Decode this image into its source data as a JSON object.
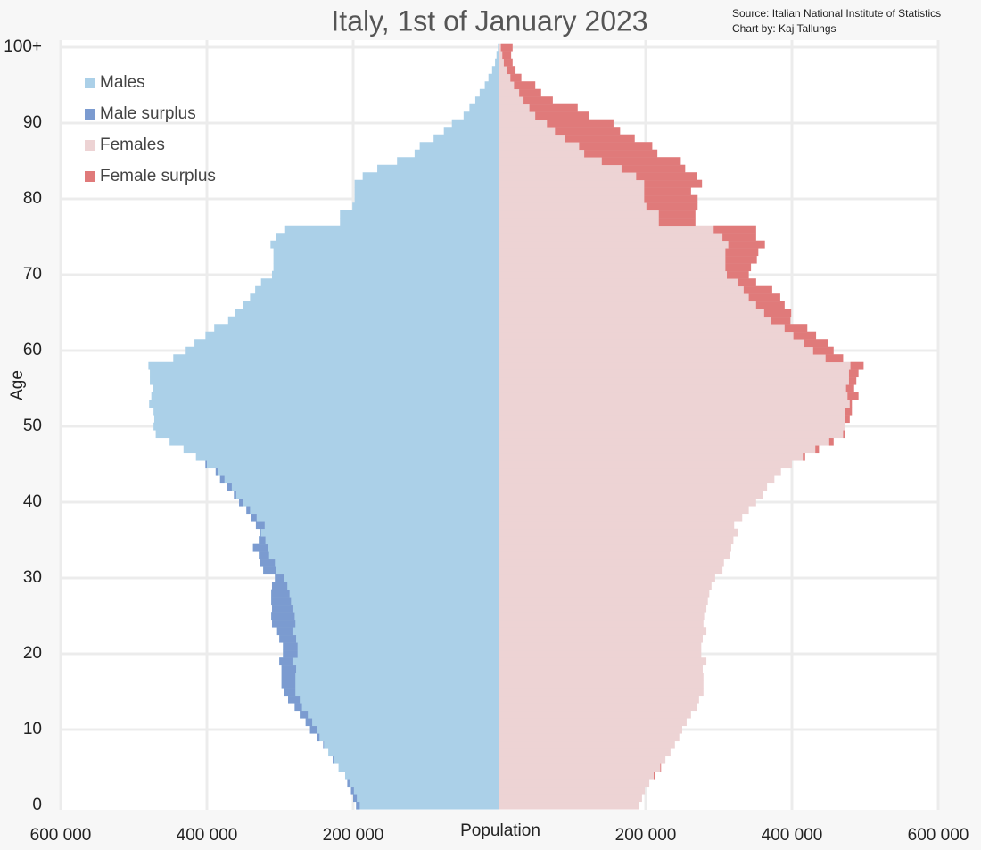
{
  "chart_data": {
    "type": "pyramid",
    "title": "Italy, 1st of January 2023",
    "source": "Source: Italian National Institute of Statistics",
    "credit": "Chart by: Kaj Tallungs",
    "xlabel": "Population",
    "ylabel": "Age",
    "categories": [
      "0",
      null,
      null,
      null,
      null,
      null,
      null,
      null,
      null,
      null,
      "10",
      null,
      null,
      null,
      null,
      null,
      null,
      null,
      null,
      null,
      "20",
      null,
      null,
      null,
      null,
      null,
      null,
      null,
      null,
      null,
      "30",
      null,
      null,
      null,
      null,
      null,
      null,
      null,
      null,
      null,
      "40",
      null,
      null,
      null,
      null,
      null,
      null,
      null,
      null,
      null,
      "50",
      null,
      null,
      null,
      null,
      null,
      null,
      null,
      null,
      null,
      "60",
      null,
      null,
      null,
      null,
      null,
      null,
      null,
      null,
      null,
      "70",
      null,
      null,
      null,
      null,
      null,
      null,
      null,
      null,
      null,
      "80",
      null,
      null,
      null,
      null,
      null,
      null,
      null,
      null,
      null,
      "90",
      null,
      null,
      null,
      null,
      null,
      null,
      null,
      null,
      null,
      "100+"
    ],
    "series": [
      {
        "name": "Males",
        "color": "#abd0e8",
        "surplus_name": "Male surplus",
        "surplus_color": "#7b9bd0",
        "side": "left",
        "values": [
          196000,
          200000,
          203000,
          208000,
          211000,
          220000,
          228000,
          234000,
          241000,
          250000,
          259000,
          265000,
          273000,
          280000,
          289000,
          295000,
          298000,
          298000,
          298000,
          301000,
          296000,
          296000,
          301000,
          304000,
          311000,
          312000,
          311000,
          312000,
          312000,
          311000,
          307000,
          323000,
          327000,
          329000,
          337000,
          329000,
          328000,
          333000,
          339000,
          346000,
          356000,
          363000,
          373000,
          382000,
          388000,
          402000,
          415000,
          432000,
          451000,
          470000,
          473000,
          472000,
          473000,
          479000,
          476000,
          474000,
          478000,
          478000,
          480000,
          446000,
          429000,
          417000,
          402000,
          390000,
          371000,
          362000,
          351000,
          341000,
          334000,
          326000,
          311000,
          309000,
          309000,
          309000,
          313000,
          305000,
          293000,
          218000,
          218000,
          201000,
          198000,
          198000,
          198000,
          187000,
          167000,
          140000,
          116000,
          109000,
          90000,
          76000,
          65000,
          49000,
          41000,
          33000,
          27000,
          20000,
          15000,
          10000,
          6000,
          4000,
          2000
        ]
      },
      {
        "name": "Females",
        "color": "#edd3d4",
        "surplus_name": "Female surplus",
        "surplus_color": "#e07a7a",
        "side": "right",
        "values": [
          191000,
          195000,
          199000,
          205000,
          213000,
          221000,
          227000,
          234000,
          240000,
          246000,
          250000,
          256000,
          262000,
          270000,
          273000,
          279000,
          279000,
          279000,
          278000,
          283000,
          276000,
          276000,
          278000,
          283000,
          279000,
          280000,
          283000,
          285000,
          287000,
          290000,
          295000,
          305000,
          307000,
          315000,
          317000,
          320000,
          326000,
          321000,
          332000,
          341000,
          351000,
          360000,
          366000,
          376000,
          385000,
          400000,
          418000,
          437000,
          457000,
          473000,
          473000,
          479000,
          482000,
          482000,
          491000,
          485000,
          488000,
          491000,
          498000,
          470000,
          457000,
          449000,
          433000,
          421000,
          398000,
          399000,
          390000,
          384000,
          373000,
          351000,
          341000,
          344000,
          352000,
          354000,
          363000,
          351000,
          351000,
          268000,
          268000,
          271000,
          271000,
          262000,
          277000,
          270000,
          254000,
          248000,
          216000,
          209000,
          185000,
          165000,
          156000,
          122000,
          107000,
          73000,
          57000,
          49000,
          30000,
          22000,
          18000,
          16000,
          18000
        ]
      }
    ],
    "xlim": [
      0,
      600000
    ],
    "xticks": [
      {
        "value": 200000,
        "label": "200 000"
      },
      {
        "value": 400000,
        "label": "400 000"
      },
      {
        "value": 600000,
        "label": "600 000"
      }
    ],
    "grid": true,
    "legend": "upper left"
  }
}
